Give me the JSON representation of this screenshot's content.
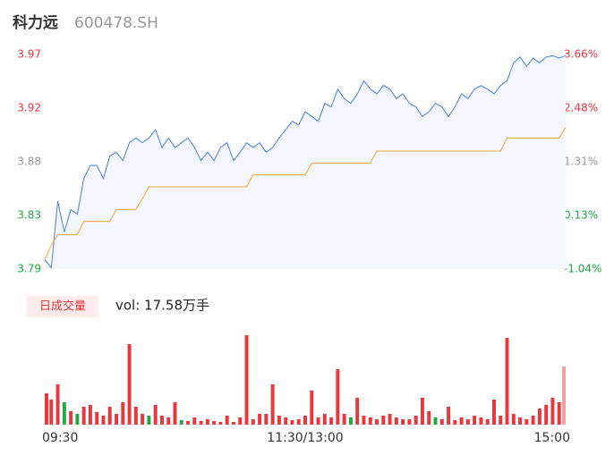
{
  "header": {
    "name": "科力远",
    "code": "600478.SH",
    "tab": "日成交量",
    "volume_label": "vol: 17.58万手"
  },
  "chart_data": [
    {
      "type": "line",
      "area_fill": "#f3f6fc",
      "x": [
        0,
        3,
        6,
        9,
        12,
        15,
        18,
        21,
        24,
        27,
        30,
        33,
        36,
        39,
        42,
        45,
        48,
        51,
        54,
        57,
        60,
        63,
        66,
        69,
        72,
        75,
        78,
        81,
        84,
        87,
        90,
        93,
        96,
        99,
        102,
        105,
        108,
        111,
        114,
        117,
        120,
        123,
        126,
        129,
        132,
        135,
        138,
        141,
        144,
        147,
        150,
        153,
        156,
        159,
        162,
        165,
        168,
        171,
        174,
        177,
        180,
        183,
        186,
        189,
        192,
        195,
        198,
        201,
        204,
        207,
        210,
        213,
        216,
        219,
        222,
        225,
        228,
        231,
        234,
        237,
        240
      ],
      "xlim": [
        0,
        240
      ],
      "ylim": [
        3.79,
        3.97
      ],
      "yticks": [
        3.97,
        {
          "value": 3.925,
          "label": "3.92"
        },
        3.88,
        {
          "value": 3.835,
          "label": "3.83"
        },
        3.79
      ],
      "y2lim": [
        -1.044,
        3.655
      ],
      "y2ticks": [
        {
          "value": 3.655,
          "label": "3.66%"
        },
        {
          "value": 2.48,
          "label": "2.48%"
        },
        {
          "value": 1.305,
          "label": "1.31%"
        },
        {
          "value": 0.13,
          "label": "0.13%"
        },
        {
          "value": -1.044,
          "label": "-1.04%"
        }
      ],
      "series": [
        {
          "color": "#4a7fe0",
          "values": [
            3.798,
            3.791,
            3.847,
            3.821,
            3.84,
            3.836,
            3.866,
            3.877,
            3.877,
            3.866,
            3.885,
            3.888,
            3.881,
            3.896,
            3.9,
            3.896,
            3.9,
            3.907,
            3.892,
            3.9,
            3.892,
            3.896,
            3.9,
            3.892,
            3.881,
            3.888,
            3.881,
            3.892,
            3.896,
            3.881,
            3.888,
            3.896,
            3.892,
            3.896,
            3.888,
            3.892,
            3.9,
            3.907,
            3.914,
            3.911,
            3.922,
            3.918,
            3.914,
            3.929,
            3.926,
            3.941,
            3.933,
            3.929,
            3.937,
            3.948,
            3.941,
            3.937,
            3.944,
            3.941,
            3.933,
            3.937,
            3.929,
            3.926,
            3.918,
            3.922,
            3.929,
            3.926,
            3.918,
            3.926,
            3.937,
            3.933,
            3.941,
            3.944,
            3.941,
            3.937,
            3.944,
            3.948,
            3.963,
            3.968,
            3.96,
            3.967,
            3.963,
            3.968,
            3.969,
            3.967,
            3.969
          ]
        },
        {
          "color": "#f0a830",
          "values": [
            3.798,
            3.81,
            3.819,
            3.819,
            3.819,
            3.819,
            3.83,
            3.83,
            3.83,
            3.83,
            3.83,
            3.84,
            3.84,
            3.84,
            3.84,
            3.849,
            3.859,
            3.859,
            3.859,
            3.859,
            3.859,
            3.859,
            3.859,
            3.859,
            3.859,
            3.859,
            3.859,
            3.859,
            3.859,
            3.859,
            3.859,
            3.859,
            3.869,
            3.869,
            3.869,
            3.869,
            3.869,
            3.869,
            3.869,
            3.869,
            3.869,
            3.879,
            3.879,
            3.879,
            3.879,
            3.879,
            3.879,
            3.879,
            3.879,
            3.879,
            3.879,
            3.889,
            3.889,
            3.889,
            3.889,
            3.889,
            3.889,
            3.889,
            3.889,
            3.889,
            3.889,
            3.889,
            3.889,
            3.889,
            3.889,
            3.889,
            3.889,
            3.889,
            3.889,
            3.889,
            3.889,
            3.9,
            3.9,
            3.9,
            3.9,
            3.9,
            3.9,
            3.9,
            3.9,
            3.9,
            3.909
          ]
        }
      ]
    },
    {
      "type": "bar",
      "x": [
        0,
        3,
        6,
        9,
        12,
        15,
        18,
        21,
        24,
        27,
        30,
        33,
        36,
        39,
        42,
        45,
        48,
        51,
        54,
        57,
        60,
        63,
        66,
        69,
        72,
        75,
        78,
        81,
        84,
        87,
        90,
        93,
        96,
        99,
        102,
        105,
        108,
        111,
        114,
        117,
        120,
        123,
        126,
        129,
        132,
        135,
        138,
        141,
        144,
        147,
        150,
        153,
        156,
        159,
        162,
        165,
        168,
        171,
        174,
        177,
        180,
        183,
        186,
        189,
        192,
        195,
        198,
        201,
        204,
        207,
        210,
        213,
        216,
        219,
        222,
        225,
        228,
        231,
        234,
        237,
        240
      ],
      "xlim": [
        0,
        240
      ],
      "xticks": [
        {
          "value": 0,
          "label": "09:30"
        },
        {
          "value": 120,
          "label": "11:30/13:00"
        },
        {
          "value": 240,
          "label": "15:00"
        }
      ],
      "ylim": [
        0,
        100
      ],
      "values": [
        35,
        28,
        45,
        25,
        15,
        12,
        20,
        22,
        14,
        10,
        20,
        12,
        25,
        90,
        20,
        12,
        10,
        22,
        10,
        8,
        25,
        5,
        4,
        8,
        4,
        6,
        4,
        3,
        10,
        3,
        8,
        100,
        6,
        12,
        12,
        45,
        10,
        8,
        5,
        6,
        10,
        38,
        8,
        12,
        8,
        62,
        12,
        8,
        30,
        10,
        8,
        6,
        10,
        12,
        8,
        6,
        6,
        10,
        30,
        15,
        8,
        6,
        20,
        5,
        8,
        6,
        10,
        8,
        6,
        28,
        10,
        97,
        12,
        8,
        6,
        10,
        18,
        22,
        30,
        25,
        65
      ],
      "colors": [
        "#e8383d",
        "#e8383d",
        "#e8383d",
        "#22a846",
        "#e8383d",
        "#22a846",
        "#e8383d",
        "#e8383d",
        "#e8383d",
        "#e8383d",
        "#e8383d",
        "#e8383d",
        "#e8383d",
        "#e8383d",
        "#e8383d",
        "#e8383d",
        "#22a846",
        "#e8383d",
        "#e8383d",
        "#e8383d",
        "#e8383d",
        "#22a846",
        "#e8383d",
        "#e8383d",
        "#e8383d",
        "#e8383d",
        "#e8383d",
        "#e8383d",
        "#e8383d",
        "#e8383d",
        "#e8383d",
        "#e8383d",
        "#e8383d",
        "#e8383d",
        "#e8383d",
        "#e8383d",
        "#e8383d",
        "#e8383d",
        "#e8383d",
        "#e8383d",
        "#e8383d",
        "#e8383d",
        "#e8383d",
        "#e8383d",
        "#e8383d",
        "#e8383d",
        "#e8383d",
        "#22a846",
        "#e8383d",
        "#e8383d",
        "#e8383d",
        "#e8383d",
        "#e8383d",
        "#e8383d",
        "#e8383d",
        "#e8383d",
        "#e8383d",
        "#e8383d",
        "#e8383d",
        "#e8383d",
        "#22a846",
        "#e8383d",
        "#e8383d",
        "#e8383d",
        "#e8383d",
        "#e8383d",
        "#e8383d",
        "#e8383d",
        "#e8383d",
        "#e8383d",
        "#e8383d",
        "#e8383d",
        "#e8383d",
        "#e8383d",
        "#e8383d",
        "#e8383d",
        "#e8383d",
        "#e8383d",
        "#e8383d",
        "#e8383d",
        "#f4a0a0"
      ]
    }
  ]
}
